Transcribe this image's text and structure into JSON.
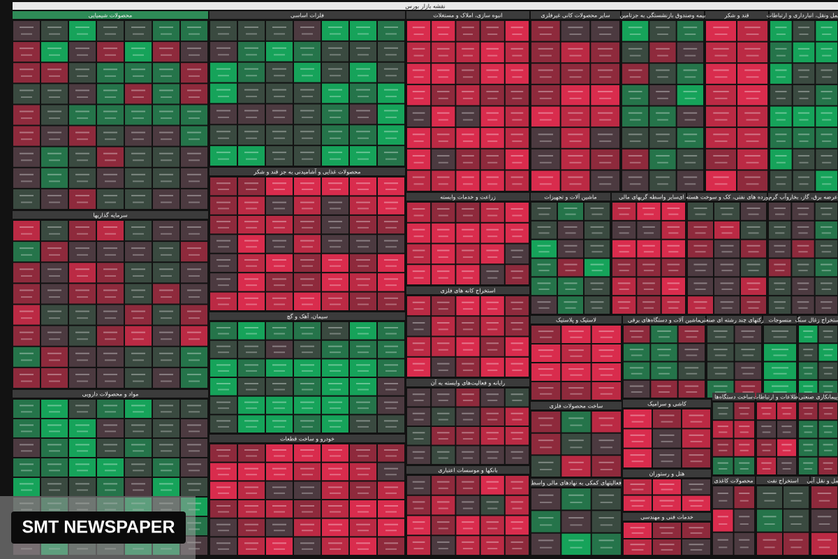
{
  "header": {
    "title": "نقشه بازار بورس"
  },
  "sectors": [
    {
      "name": "محصولات شیمیایی"
    },
    {
      "name": "سرمایه گذاریها"
    },
    {
      "name": "مواد و محصولات دارویی"
    },
    {
      "name": "فلزات اساسی"
    },
    {
      "name": "محصولات غذایی و آشامیدنی به جز قند و شکر"
    },
    {
      "name": "سیمان، آهک و گچ"
    },
    {
      "name": "خودرو و ساخت قطعات"
    },
    {
      "name": "انبوه سازی، املاک و مستغلات"
    },
    {
      "name": "زراعت و خدمات وابسته"
    },
    {
      "name": "استخراج کانه های فلزی"
    },
    {
      "name": "رایانه و فعالیت‌های وابسته به آن"
    },
    {
      "name": "بانکها و موسسات اعتباری"
    },
    {
      "name": "سایر محصولات کانی غیرفلزی"
    },
    {
      "name": "ماشین آلات و تجهیزات"
    },
    {
      "name": "سایر واسطه گریهای مالی"
    },
    {
      "name": "لاستیک و پلاستیک"
    },
    {
      "name": "ساخت محصولات فلزی"
    },
    {
      "name": "فعالیتهای کمکی به نهادهای مالی واسط"
    },
    {
      "name": "بیمه وصندوق بازنشستگی به جزتامین"
    },
    {
      "name": "قند و شکر"
    },
    {
      "name": "حمل ونقل، انبارداری و ارتباطات"
    },
    {
      "name": "فراورده های نفتی، کک و سوخت هسته ای"
    },
    {
      "name": "عرضه برق، گاز، بخاروآب گرم"
    },
    {
      "name": "ماشین آلات و دستگاه‌های برقی"
    },
    {
      "name": "شرکتهای چند رشته ای صنعتی"
    },
    {
      "name": "منسوجات"
    },
    {
      "name": "استخراج زغال سنگ"
    },
    {
      "name": "کاشی و سرامیک"
    },
    {
      "name": "هتل و رستوران"
    },
    {
      "name": "خدمات فنی و مهندسی"
    },
    {
      "name": "ساخت دستگاه‌ها"
    },
    {
      "name": "اطلاعات و ارتباطات"
    },
    {
      "name": "پیمانکاری صنعتی"
    },
    {
      "name": "محصولات کاغذی"
    },
    {
      "name": "استخراج نفت"
    },
    {
      "name": "حمل و نقل آبی"
    }
  ],
  "watermark": "SMT NEWSPAPER"
}
